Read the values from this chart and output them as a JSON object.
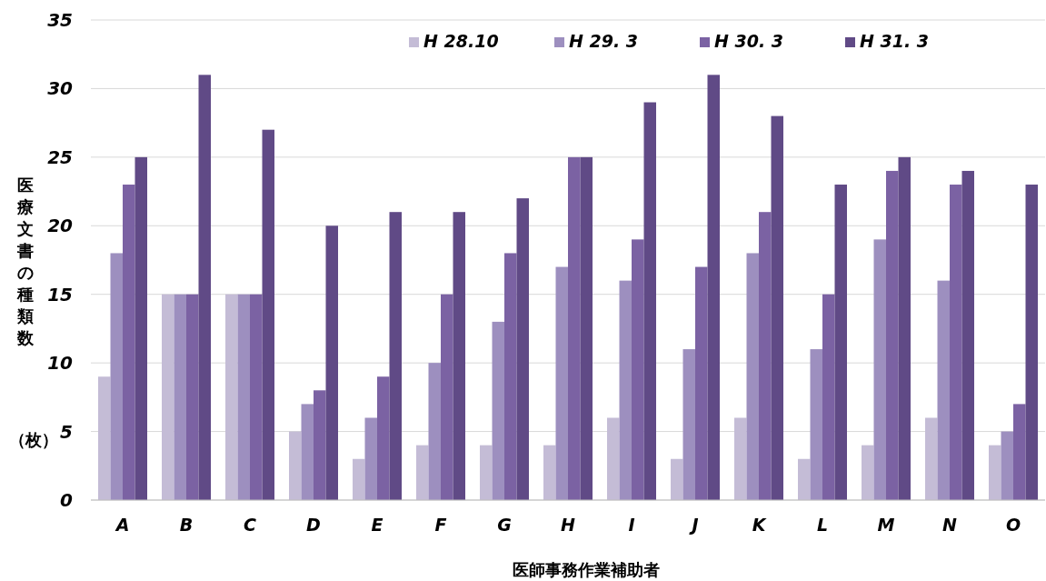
{
  "chart_data": {
    "type": "bar",
    "xlabel": "医師事務作業補助者",
    "ylabel": "医療文書の種類数",
    "annotations": [
      "（枚）"
    ],
    "categories": [
      "A",
      "B",
      "C",
      "D",
      "E",
      "F",
      "G",
      "H",
      "I",
      "J",
      "K",
      "L",
      "M",
      "N",
      "O"
    ],
    "series": [
      {
        "name": "H 28.10",
        "color": "#c4bcd6",
        "values": [
          9,
          15,
          15,
          5,
          3,
          4,
          4,
          4,
          6,
          3,
          6,
          3,
          4,
          6,
          4
        ]
      },
      {
        "name": "H 29. 3",
        "color": "#9d8fbf",
        "values": [
          18,
          15,
          15,
          7,
          6,
          10,
          13,
          17,
          16,
          11,
          18,
          11,
          19,
          16,
          5
        ]
      },
      {
        "name": "H 30. 3",
        "color": "#7b62a3",
        "values": [
          23,
          15,
          15,
          8,
          9,
          15,
          18,
          25,
          19,
          17,
          21,
          15,
          24,
          23,
          7
        ]
      },
      {
        "name": "H 31. 3",
        "color": "#604a86",
        "values": [
          25,
          31,
          27,
          20,
          21,
          21,
          22,
          25,
          29,
          31,
          28,
          23,
          25,
          24,
          23
        ]
      }
    ],
    "ylim": [
      0,
      35
    ],
    "yticks": [
      0,
      5,
      10,
      15,
      20,
      25,
      30,
      35
    ],
    "grid": "y",
    "legend": "top"
  }
}
